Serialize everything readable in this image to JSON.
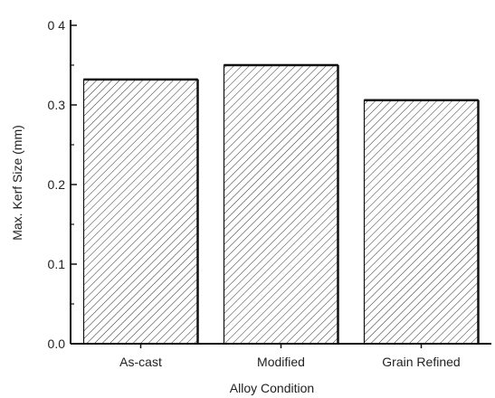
{
  "chart_data": {
    "type": "bar",
    "categories": [
      "As-cast",
      "Modified",
      "Grain Refined"
    ],
    "values": [
      0.332,
      0.35,
      0.306
    ],
    "title": "",
    "xlabel": "Alloy Condition",
    "ylabel": "Max. Kerf Size (mm)",
    "ylim": [
      0.0,
      0.4
    ],
    "yticks": [
      0.0,
      0.1,
      0.2,
      0.3,
      0.4
    ],
    "ytick_labels": [
      "0.0",
      "0.1",
      "0.2",
      "0.3",
      "0 4"
    ],
    "bar_fill": "hatched",
    "colors": {
      "axis": "#111111",
      "hatch": "#333333",
      "bar_background": "#ffffff"
    },
    "grid": false,
    "legend": "none"
  }
}
